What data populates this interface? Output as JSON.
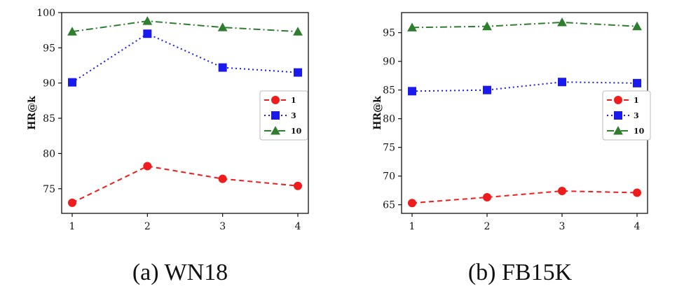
{
  "chart_data": [
    {
      "type": "line",
      "caption": "(a) WN18",
      "ylabel": "HR@k",
      "x": [
        1,
        2,
        3,
        4
      ],
      "ylim": [
        71.5,
        100
      ],
      "yticks": [
        75,
        80,
        85,
        90,
        95,
        100
      ],
      "legend_position": "center-right",
      "series": [
        {
          "name": "1",
          "values": [
            73.0,
            78.2,
            76.4,
            75.4
          ],
          "color": "#ee1c1c",
          "marker": "circle",
          "dash": "dashed"
        },
        {
          "name": "3",
          "values": [
            90.1,
            97.0,
            92.2,
            91.5
          ],
          "color": "#1a1aee",
          "marker": "square",
          "dash": "dotted"
        },
        {
          "name": "10",
          "values": [
            97.3,
            98.8,
            97.9,
            97.3
          ],
          "color": "#2f7d2f",
          "marker": "triangle",
          "dash": "dashdot"
        }
      ]
    },
    {
      "type": "line",
      "caption": "(b) FB15K",
      "ylabel": "HR@k",
      "x": [
        1,
        2,
        3,
        4
      ],
      "ylim": [
        63.5,
        98.5
      ],
      "yticks": [
        65,
        70,
        75,
        80,
        85,
        90,
        95
      ],
      "legend_position": "center-right",
      "series": [
        {
          "name": "1",
          "values": [
            65.3,
            66.3,
            67.4,
            67.1
          ],
          "color": "#ee1c1c",
          "marker": "circle",
          "dash": "dashed"
        },
        {
          "name": "3",
          "values": [
            84.8,
            85.0,
            86.4,
            86.2
          ],
          "color": "#1a1aee",
          "marker": "square",
          "dash": "dotted"
        },
        {
          "name": "10",
          "values": [
            95.9,
            96.1,
            96.8,
            96.1
          ],
          "color": "#2f7d2f",
          "marker": "triangle",
          "dash": "dashdot"
        }
      ]
    }
  ]
}
